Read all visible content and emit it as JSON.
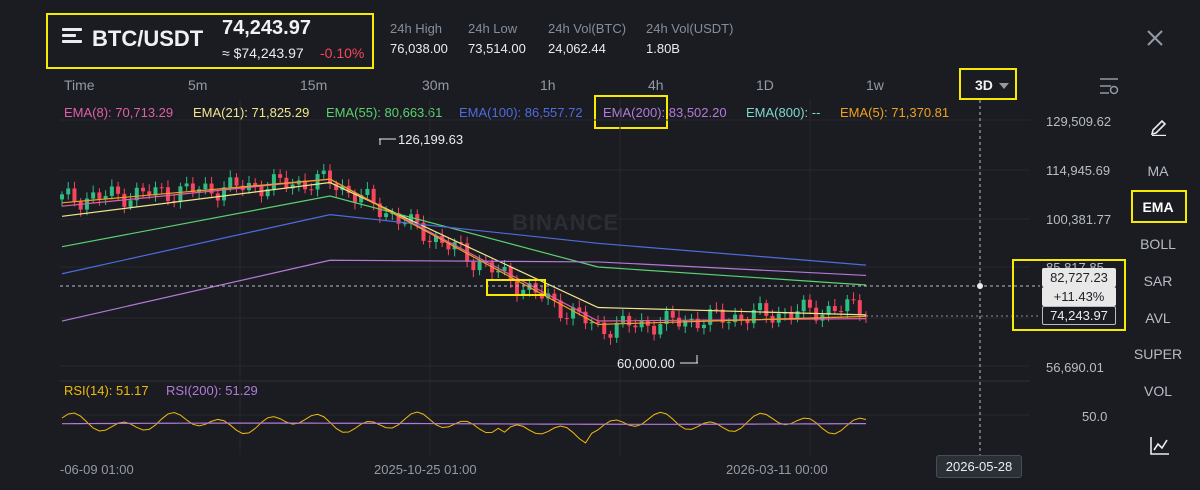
{
  "header": {
    "pair": "BTC/USDT",
    "last_price": "74,243.97",
    "usd_price": "≈ $74,243.97",
    "change_pct": "-0.10%",
    "stats": [
      {
        "label": "24h High",
        "value": "76,038.00"
      },
      {
        "label": "24h Low",
        "value": "73,514.00"
      },
      {
        "label": "24h Vol(BTC)",
        "value": "24,062.44"
      },
      {
        "label": "24h Vol(USDT)",
        "value": "1.80B"
      }
    ]
  },
  "timeframes": [
    "Time",
    "5m",
    "15m",
    "30m",
    "1h",
    "4h",
    "1D",
    "1w"
  ],
  "selected_timeframe": "3D",
  "ema_legend": [
    {
      "label": "EMA(8): 70,713.29",
      "color": "#e05fa8"
    },
    {
      "label": "EMA(21): 71,825.29",
      "color": "#f0e68c"
    },
    {
      "label": "EMA(55): 80,663.61",
      "color": "#5bd16f"
    },
    {
      "label": "EMA(100): 86,557.72",
      "color": "#4f6bde"
    },
    {
      "label": "EMA(200): 83,502.20",
      "color": "#b27ad9"
    },
    {
      "label": "EMA(800): --",
      "color": "#7fd8d0"
    },
    {
      "label": "EMA(5): 71,370.81",
      "color": "#f0a020"
    }
  ],
  "watermark": "BINANCE",
  "y_axis": {
    "labels": [
      "129,509.62",
      "114,945.69",
      "100,381.77",
      "56,690.01"
    ],
    "hidden_label": "85,817.85",
    "cursor_price": "82,727.23",
    "cursor_pct": "+11.43%",
    "current_price": "74,243.97"
  },
  "annotations": {
    "high": "126,199.63",
    "low": "60,000.00"
  },
  "rsi": {
    "labels": [
      {
        "label": "RSI(14): 51.17",
        "color": "#f0b90b"
      },
      {
        "label": "RSI(200): 51.29",
        "color": "#b27ad9"
      }
    ],
    "axis_label": "50.0"
  },
  "x_axis": {
    "labels": [
      "-06-09 01:00",
      "2025-10-25 01:00",
      "2026-03-11 00:00"
    ],
    "cursor_date": "2026-05-28"
  },
  "side_menu": [
    "MA",
    "EMA",
    "BOLL",
    "SAR",
    "AVL",
    "SUPER",
    "VOL"
  ],
  "side_active": "EMA",
  "colors": {
    "up": "#2ebd85",
    "down": "#f6465d",
    "highlight": "#f5ea00"
  },
  "chart_data": {
    "type": "line",
    "title": "BTC/USDT",
    "ylabel": "",
    "ylim": [
      56690.01,
      129509.62
    ],
    "x": [
      "2025-06-09",
      "2025-10-25",
      "2026-03-11",
      "2026-05-28"
    ],
    "series": [
      {
        "name": "BTC/USDT",
        "values": [
          106000,
          111500,
          68000,
          74243.97
        ]
      },
      {
        "name": "EMA(8)",
        "values": [
          104000,
          112000,
          70000,
          70713.29
        ]
      },
      {
        "name": "EMA(21)",
        "values": [
          101000,
          111000,
          74000,
          71825.29
        ]
      },
      {
        "name": "EMA(55)",
        "values": [
          92000,
          107000,
          86000,
          80663.61
        ]
      },
      {
        "name": "EMA(100)",
        "values": [
          84000,
          101500,
          93000,
          86557.72
        ]
      },
      {
        "name": "EMA(200)",
        "values": [
          70000,
          88000,
          87500,
          83502.2
        ]
      },
      {
        "name": "EMA(5)",
        "values": [
          105000,
          112000,
          69000,
          71370.81
        ]
      }
    ],
    "extremes": {
      "high": 126199.63,
      "low": 60000.0
    }
  }
}
